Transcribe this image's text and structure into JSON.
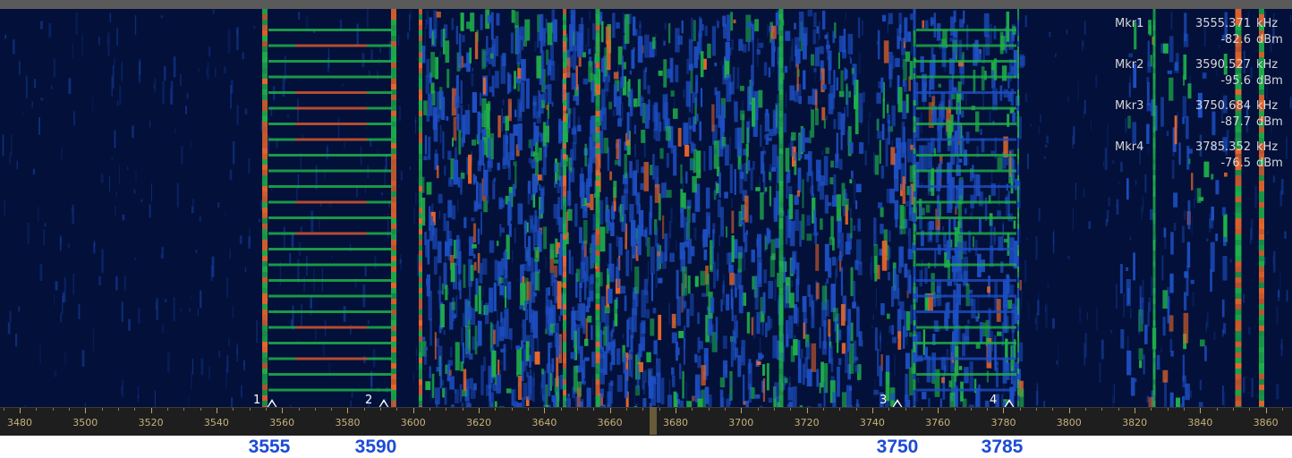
{
  "markers": [
    {
      "id": "1",
      "name": "Mkr1",
      "freq": "3555.371",
      "freq_unit": "kHz",
      "level": "-82.6",
      "level_unit": "dBm",
      "annotation": "3555",
      "freq_value": 3555.371
    },
    {
      "id": "2",
      "name": "Mkr2",
      "freq": "3590.527",
      "freq_unit": "kHz",
      "level": "-95.6",
      "level_unit": "dBm",
      "annotation": "3590",
      "freq_value": 3590.527
    },
    {
      "id": "3",
      "name": "Mkr3",
      "freq": "3750.684",
      "freq_unit": "kHz",
      "level": "-87.7",
      "level_unit": "dBm",
      "annotation": "3750",
      "freq_value": 3750.684
    },
    {
      "id": "4",
      "name": "Mkr4",
      "freq": "3785.352",
      "freq_unit": "kHz",
      "level": "-76.5",
      "level_unit": "dBm",
      "annotation": "3785",
      "freq_value": 3785.352
    }
  ],
  "axis": {
    "ticks": [
      "3480",
      "3500",
      "3520",
      "3540",
      "3560",
      "3580",
      "3600",
      "3620",
      "3640",
      "3660",
      "3680",
      "3700",
      "3720",
      "3740",
      "3760",
      "3780",
      "3800",
      "3820",
      "3840",
      "3860"
    ],
    "range_khz": [
      3474,
      3868
    ]
  },
  "colors": {
    "background": "#02103a",
    "weak": "#1d4fc2",
    "medium": "#1fb04a",
    "strong": "#e8672a",
    "peak": "#d93b2b",
    "axis_text": "#c7b07a",
    "annotation": "#1c4bd6"
  }
}
